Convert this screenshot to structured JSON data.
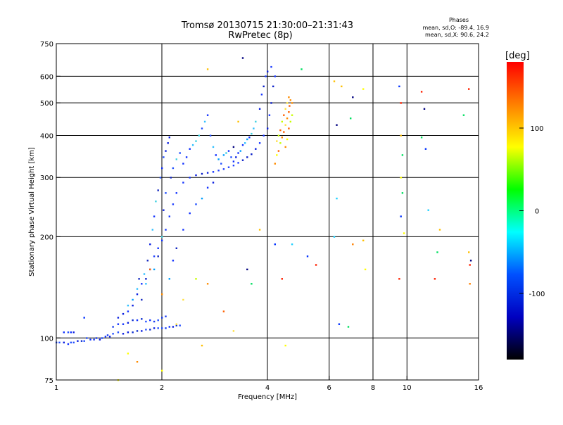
{
  "chart_data": {
    "type": "scatter",
    "title": "Tromsø 20130715 21:30:00–21:31:43",
    "subtitle": "RwPretec (8p)",
    "xlabel": "Frequency [MHz]",
    "ylabel": "Stationary phase Virtual Height [km]",
    "x_scale": "log",
    "y_scale": "log",
    "xlim": [
      1,
      16
    ],
    "ylim": [
      75,
      750
    ],
    "x_ticks": [
      1,
      2,
      4,
      6,
      8,
      10,
      16
    ],
    "y_ticks": [
      75,
      100,
      200,
      300,
      400,
      500,
      600,
      750
    ],
    "x_gridlines": [
      2,
      4,
      6,
      8,
      10
    ],
    "y_gridlines": [
      100,
      200,
      300,
      400,
      500,
      600
    ],
    "grid": true,
    "legend": {
      "heading": "Phases",
      "lines": [
        "mean, sd,O: -89.4, 16.9",
        "mean, sd,X:  90.6, 24.2"
      ]
    },
    "colorbar": {
      "label": "[deg]",
      "range": [
        -180,
        180
      ],
      "ticks": [
        100,
        0,
        -100
      ],
      "colors": [
        "#ff0000",
        "#ff8000",
        "#ffff00",
        "#00ff00",
        "#00ffff",
        "#0050ff",
        "#0000c0",
        "#000000"
      ]
    },
    "series": [
      {
        "role": "low-layer trace",
        "points": [
          [
            1.0,
            97
          ],
          [
            1.02,
            97
          ],
          [
            1.05,
            97
          ],
          [
            1.08,
            96
          ],
          [
            1.1,
            97
          ],
          [
            1.12,
            97
          ],
          [
            1.15,
            98
          ],
          [
            1.18,
            98
          ],
          [
            1.2,
            98
          ],
          [
            1.22,
            100
          ],
          [
            1.25,
            99
          ],
          [
            1.28,
            99
          ],
          [
            1.3,
            100
          ],
          [
            1.33,
            99
          ],
          [
            1.35,
            100
          ],
          [
            1.38,
            101
          ],
          [
            1.4,
            102
          ],
          [
            1.42,
            101
          ],
          [
            1.45,
            103
          ],
          [
            1.5,
            104
          ],
          [
            1.55,
            103
          ],
          [
            1.6,
            104
          ],
          [
            1.65,
            104
          ],
          [
            1.7,
            105
          ],
          [
            1.75,
            105
          ],
          [
            1.8,
            106
          ],
          [
            1.85,
            106
          ],
          [
            1.9,
            107
          ],
          [
            1.95,
            107
          ],
          [
            2.0,
            107
          ],
          [
            2.05,
            107
          ],
          [
            2.1,
            108
          ],
          [
            2.15,
            108
          ],
          [
            2.2,
            109
          ],
          [
            2.25,
            109
          ],
          [
            1.05,
            104
          ],
          [
            1.08,
            104
          ],
          [
            1.1,
            104
          ],
          [
            1.12,
            104
          ],
          [
            1.45,
            108
          ],
          [
            1.5,
            110
          ],
          [
            1.55,
            110
          ],
          [
            1.6,
            111
          ],
          [
            1.65,
            113
          ],
          [
            1.7,
            113
          ],
          [
            1.75,
            114
          ],
          [
            1.8,
            112
          ],
          [
            1.85,
            113
          ],
          [
            1.9,
            112
          ],
          [
            1.95,
            113
          ],
          [
            2.0,
            115
          ],
          [
            2.05,
            116
          ]
        ]
      },
      {
        "role": "rising trace",
        "points": [
          [
            1.5,
            115
          ],
          [
            1.55,
            118
          ],
          [
            1.6,
            120
          ],
          [
            1.65,
            125
          ],
          [
            1.7,
            135
          ],
          [
            1.75,
            145
          ],
          [
            1.8,
            150
          ],
          [
            1.85,
            160
          ],
          [
            1.9,
            175
          ],
          [
            1.95,
            185
          ],
          [
            2.0,
            195
          ],
          [
            2.05,
            210
          ],
          [
            2.1,
            230
          ],
          [
            2.15,
            250
          ],
          [
            2.2,
            270
          ],
          [
            2.3,
            290
          ],
          [
            2.4,
            300
          ],
          [
            2.5,
            305
          ],
          [
            2.6,
            308
          ],
          [
            2.7,
            310
          ],
          [
            2.8,
            312
          ],
          [
            2.9,
            315
          ],
          [
            3.0,
            318
          ],
          [
            3.1,
            322
          ],
          [
            3.2,
            326
          ],
          [
            3.3,
            332
          ],
          [
            3.4,
            338
          ],
          [
            3.5,
            345
          ],
          [
            3.6,
            352
          ],
          [
            3.7,
            365
          ],
          [
            3.8,
            380
          ],
          [
            3.9,
            400
          ],
          [
            4.0,
            420
          ],
          [
            4.05,
            460
          ],
          [
            4.1,
            500
          ],
          [
            4.15,
            560
          ],
          [
            4.2,
            600
          ],
          [
            4.1,
            640
          ],
          [
            4.0,
            620
          ],
          [
            3.95,
            600
          ],
          [
            3.9,
            560
          ],
          [
            3.85,
            530
          ],
          [
            3.8,
            480
          ]
        ]
      },
      {
        "role": "scattered cloud",
        "points": [
          [
            1.75,
            130
          ],
          [
            1.8,
            145
          ],
          [
            1.82,
            170
          ],
          [
            1.85,
            190
          ],
          [
            1.88,
            210
          ],
          [
            1.9,
            230
          ],
          [
            1.92,
            255
          ],
          [
            1.95,
            275
          ],
          [
            1.98,
            300
          ],
          [
            2.0,
            320
          ],
          [
            2.02,
            345
          ],
          [
            2.05,
            360
          ],
          [
            2.08,
            380
          ],
          [
            2.1,
            395
          ],
          [
            2.12,
            300
          ],
          [
            2.15,
            320
          ],
          [
            2.2,
            340
          ],
          [
            2.25,
            355
          ],
          [
            2.3,
            330
          ],
          [
            2.35,
            345
          ],
          [
            2.4,
            365
          ],
          [
            2.45,
            375
          ],
          [
            2.5,
            385
          ],
          [
            2.55,
            400
          ],
          [
            2.6,
            420
          ],
          [
            2.65,
            440
          ],
          [
            2.7,
            460
          ],
          [
            2.75,
            400
          ],
          [
            2.8,
            370
          ],
          [
            2.85,
            350
          ],
          [
            2.9,
            340
          ],
          [
            2.95,
            330
          ],
          [
            3.0,
            350
          ],
          [
            3.05,
            355
          ],
          [
            3.1,
            360
          ],
          [
            3.15,
            345
          ],
          [
            3.2,
            335
          ],
          [
            3.25,
            345
          ],
          [
            3.3,
            355
          ],
          [
            3.35,
            360
          ],
          [
            3.4,
            375
          ],
          [
            3.45,
            380
          ],
          [
            3.5,
            390
          ],
          [
            3.55,
            395
          ],
          [
            3.6,
            405
          ],
          [
            3.65,
            420
          ],
          [
            3.7,
            440
          ],
          [
            1.9,
            160
          ],
          [
            1.95,
            175
          ],
          [
            2.0,
            200
          ],
          [
            2.02,
            240
          ],
          [
            2.05,
            270
          ],
          [
            2.1,
            150
          ],
          [
            2.15,
            170
          ],
          [
            2.2,
            185
          ],
          [
            2.3,
            210
          ],
          [
            2.4,
            235
          ],
          [
            2.5,
            250
          ],
          [
            2.6,
            260
          ],
          [
            2.7,
            280
          ],
          [
            2.8,
            290
          ],
          [
            1.6,
            125
          ],
          [
            1.65,
            130
          ],
          [
            1.7,
            140
          ],
          [
            1.72,
            150
          ],
          [
            1.78,
            155
          ]
        ]
      },
      {
        "role": "high-phase echoes",
        "points": [
          [
            4.2,
            330
          ],
          [
            4.25,
            350
          ],
          [
            4.3,
            360
          ],
          [
            4.35,
            380
          ],
          [
            4.4,
            395
          ],
          [
            4.45,
            410
          ],
          [
            4.5,
            430
          ],
          [
            4.55,
            450
          ],
          [
            4.6,
            470
          ],
          [
            4.62,
            490
          ],
          [
            4.65,
            510
          ],
          [
            4.6,
            520
          ],
          [
            4.55,
            500
          ],
          [
            4.5,
            480
          ],
          [
            4.45,
            460
          ],
          [
            4.4,
            440
          ],
          [
            4.35,
            415
          ],
          [
            4.3,
            400
          ],
          [
            4.25,
            385
          ],
          [
            4.5,
            370
          ],
          [
            4.55,
            390
          ],
          [
            4.6,
            420
          ],
          [
            4.65,
            440
          ],
          [
            4.7,
            460
          ],
          [
            4.7,
            500
          ],
          [
            2.2,
            110
          ],
          [
            2.3,
            130
          ],
          [
            2.5,
            150
          ],
          [
            2.7,
            145
          ],
          [
            3.0,
            120
          ],
          [
            3.2,
            105
          ],
          [
            1.6,
            90
          ],
          [
            1.7,
            85
          ],
          [
            2.0,
            135
          ],
          [
            1.85,
            160
          ]
        ]
      },
      {
        "role": "sparse echoes",
        "points": [
          [
            3.4,
            680
          ],
          [
            2.7,
            630
          ],
          [
            3.2,
            370
          ],
          [
            3.3,
            440
          ],
          [
            3.8,
            210
          ],
          [
            4.2,
            190
          ],
          [
            4.5,
            95
          ],
          [
            4.4,
            150
          ],
          [
            4.7,
            190
          ],
          [
            5.2,
            175
          ],
          [
            5.5,
            165
          ],
          [
            5.0,
            630
          ],
          [
            6.2,
            580
          ],
          [
            6.3,
            430
          ],
          [
            6.5,
            560
          ],
          [
            7.0,
            520
          ],
          [
            7.5,
            550
          ],
          [
            6.3,
            260
          ],
          [
            6.4,
            110
          ],
          [
            6.8,
            108
          ],
          [
            7.0,
            190
          ],
          [
            7.5,
            195
          ],
          [
            7.6,
            160
          ],
          [
            6.9,
            450
          ],
          [
            6.2,
            200
          ],
          [
            9.5,
            560
          ],
          [
            9.6,
            500
          ],
          [
            9.6,
            400
          ],
          [
            9.7,
            350
          ],
          [
            9.6,
            300
          ],
          [
            9.7,
            270
          ],
          [
            9.6,
            230
          ],
          [
            9.8,
            205
          ],
          [
            9.5,
            150
          ],
          [
            11.0,
            540
          ],
          [
            11.2,
            480
          ],
          [
            11.0,
            395
          ],
          [
            11.3,
            365
          ],
          [
            11.5,
            240
          ],
          [
            12.0,
            150
          ],
          [
            12.2,
            180
          ],
          [
            12.4,
            210
          ],
          [
            14.5,
            460
          ],
          [
            15.0,
            550
          ],
          [
            15.0,
            180
          ],
          [
            15.2,
            170
          ],
          [
            15.1,
            145
          ],
          [
            15.1,
            165
          ],
          [
            1.2,
            115
          ],
          [
            2.0,
            80
          ],
          [
            1.5,
            75
          ],
          [
            2.6,
            95
          ],
          [
            3.5,
            160
          ],
          [
            3.6,
            145
          ]
        ]
      }
    ]
  }
}
